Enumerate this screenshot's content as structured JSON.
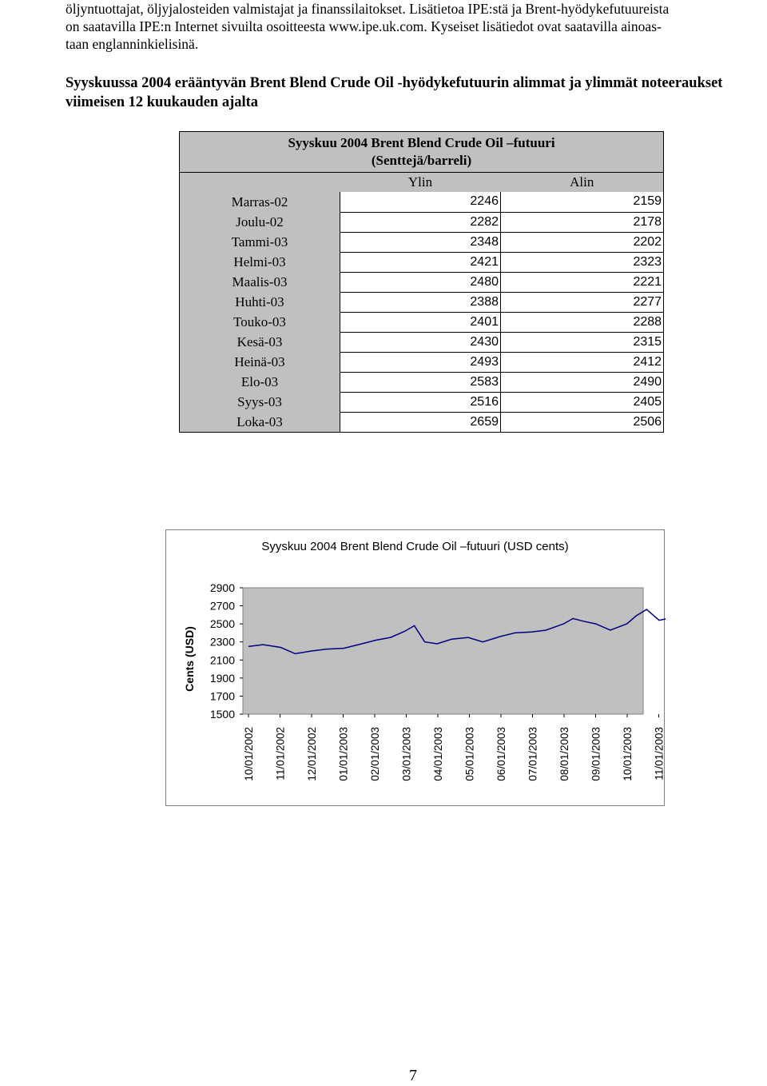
{
  "intro": {
    "lines": [
      "öljyntuottajat, öljyjalosteiden valmistajat ja finanssilaitokset. Lisätietoa IPE:stä ja Brent-hyödykefutuureista",
      "on saatavilla IPE:n Internet sivuilta osoitteesta www.ipe.uk.com. Kyseiset lisätiedot ovat saatavilla ainoas-",
      "taan englanninkielisinä."
    ]
  },
  "section_heading": "Syyskuussa 2004 erääntyvän Brent Blend Crude Oil -hyödykefutuurin alimmat ja ylimmät noteeraukset viimeisen 12 kuukauden ajalta",
  "table": {
    "title_line1": "Syyskuu 2004 Brent Blend Crude Oil –futuuri",
    "title_line2": "(Senttejä/barreli)",
    "col_high": "Ylin",
    "col_low": "Alin",
    "rows": [
      {
        "month": "Marras-02",
        "high": "2246",
        "low": "2159"
      },
      {
        "month": "Joulu-02",
        "high": "2282",
        "low": "2178"
      },
      {
        "month": "Tammi-03",
        "high": "2348",
        "low": "2202"
      },
      {
        "month": "Helmi-03",
        "high": "2421",
        "low": "2323"
      },
      {
        "month": "Maalis-03",
        "high": "2480",
        "low": "2221"
      },
      {
        "month": "Huhti-03",
        "high": "2388",
        "low": "2277"
      },
      {
        "month": "Touko-03",
        "high": "2401",
        "low": "2288"
      },
      {
        "month": "Kesä-03",
        "high": "2430",
        "low": "2315"
      },
      {
        "month": "Heinä-03",
        "high": "2493",
        "low": "2412"
      },
      {
        "month": "Elo-03",
        "high": "2583",
        "low": "2490"
      },
      {
        "month": "Syys-03",
        "high": "2516",
        "low": "2405"
      },
      {
        "month": "Loka-03",
        "high": "2659",
        "low": "2506"
      }
    ]
  },
  "chart_data": {
    "type": "line",
    "title": "Syyskuu 2004 Brent Blend Crude Oil –futuuri (USD cents)",
    "ylabel": "Cents (USD)",
    "xlabel": "",
    "ylim": [
      1500,
      2900
    ],
    "yticks": [
      2900,
      2700,
      2500,
      2300,
      2100,
      1900,
      1700,
      1500
    ],
    "xtick_labels": [
      "10/01/2002",
      "11/01/2002",
      "12/01/2002",
      "01/01/2003",
      "02/01/2003",
      "03/01/2003",
      "04/01/2003",
      "05/01/2003",
      "06/01/2003",
      "07/01/2003",
      "08/01/2003",
      "09/01/2003",
      "10/01/2003",
      "11/01/2003"
    ],
    "series_color": "#000080",
    "plot_background": "#c0c0c0",
    "grid": false,
    "legend": "none",
    "series": [
      {
        "x": [
          "10/01/2002",
          "10/15/2002",
          "11/01/2002",
          "11/15/2002",
          "12/01/2002",
          "12/15/2002",
          "01/01/2003",
          "01/15/2003",
          "02/01/2003",
          "02/15/2003",
          "03/01/2003",
          "03/10/2003",
          "03/20/2003",
          "04/01/2003",
          "04/15/2003",
          "05/01/2003",
          "05/15/2003",
          "06/01/2003",
          "06/15/2003",
          "07/01/2003",
          "07/15/2003",
          "08/01/2003",
          "08/10/2003",
          "08/20/2003",
          "09/01/2003",
          "09/15/2003",
          "10/01/2003",
          "10/10/2003",
          "10/20/2003",
          "11/01/2003",
          "11/10/2003",
          "11/15/2003"
        ],
        "values": [
          2250,
          2270,
          2240,
          2170,
          2200,
          2220,
          2230,
          2270,
          2320,
          2350,
          2420,
          2480,
          2300,
          2280,
          2330,
          2350,
          2300,
          2360,
          2400,
          2410,
          2430,
          2500,
          2560,
          2530,
          2500,
          2430,
          2500,
          2590,
          2660,
          2540,
          2560,
          2640
        ]
      }
    ]
  },
  "page_number": "7",
  "doc_id": "61952_v7"
}
